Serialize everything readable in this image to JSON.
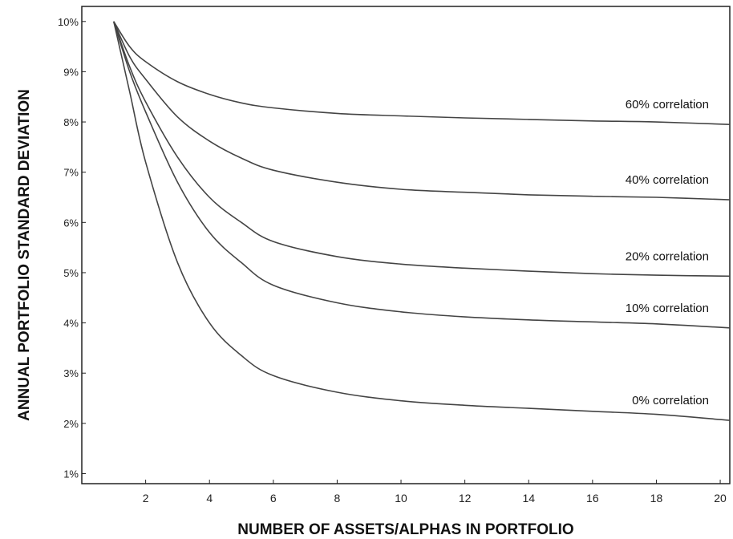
{
  "chart_data": {
    "type": "line",
    "title": "",
    "xlabel": "NUMBER OF ASSETS/ALPHAS IN PORTFOLIO",
    "ylabel": "ANNUAL PORTFOLIO STANDARD DEVIATION",
    "xlim": [
      0,
      20.3
    ],
    "ylim": [
      0.8,
      10.3
    ],
    "x_ticks": [
      2,
      4,
      6,
      8,
      10,
      12,
      14,
      16,
      18,
      20
    ],
    "y_ticks": [
      1,
      2,
      3,
      4,
      5,
      6,
      7,
      8,
      9,
      10
    ],
    "y_tick_labels": [
      "1%",
      "2%",
      "3%",
      "4%",
      "5%",
      "6%",
      "7%",
      "8%",
      "9%",
      "10%"
    ],
    "grid": false,
    "legend": "inline labels at right end of each line",
    "series": [
      {
        "name": "60% correlation",
        "x": [
          1,
          1.5,
          2,
          3,
          4,
          5,
          6,
          8,
          10,
          12,
          14,
          16,
          18,
          20.3
        ],
        "y": [
          10,
          9.5,
          9.2,
          8.8,
          8.55,
          8.38,
          8.28,
          8.17,
          8.12,
          8.08,
          8.05,
          8.02,
          8.0,
          7.95
        ]
      },
      {
        "name": "40% correlation",
        "x": [
          1,
          1.5,
          2,
          3,
          4,
          5,
          6,
          8,
          10,
          12,
          14,
          16,
          18,
          20.3
        ],
        "y": [
          10,
          9.3,
          8.85,
          8.1,
          7.62,
          7.28,
          7.04,
          6.8,
          6.66,
          6.6,
          6.55,
          6.52,
          6.5,
          6.45
        ]
      },
      {
        "name": "20% correlation",
        "x": [
          1,
          1.5,
          2,
          3,
          4,
          5,
          6,
          8,
          10,
          12,
          14,
          16,
          18,
          20.3
        ],
        "y": [
          10,
          9.1,
          8.4,
          7.3,
          6.5,
          6.0,
          5.62,
          5.32,
          5.17,
          5.09,
          5.03,
          4.98,
          4.95,
          4.93
        ]
      },
      {
        "name": "10% correlation",
        "x": [
          1,
          1.5,
          2,
          3,
          4,
          5,
          6,
          8,
          10,
          12,
          14,
          16,
          18,
          20.3
        ],
        "y": [
          10,
          9.0,
          8.2,
          6.8,
          5.8,
          5.2,
          4.75,
          4.4,
          4.22,
          4.12,
          4.06,
          4.02,
          3.98,
          3.9
        ]
      },
      {
        "name": "0% correlation",
        "x": [
          1,
          1.5,
          2,
          3,
          4,
          5,
          6,
          8,
          10,
          12,
          14,
          16,
          18,
          20.3
        ],
        "y": [
          10,
          8.6,
          7.2,
          5.2,
          4.0,
          3.35,
          2.95,
          2.62,
          2.45,
          2.36,
          2.3,
          2.24,
          2.18,
          2.06
        ]
      }
    ]
  }
}
